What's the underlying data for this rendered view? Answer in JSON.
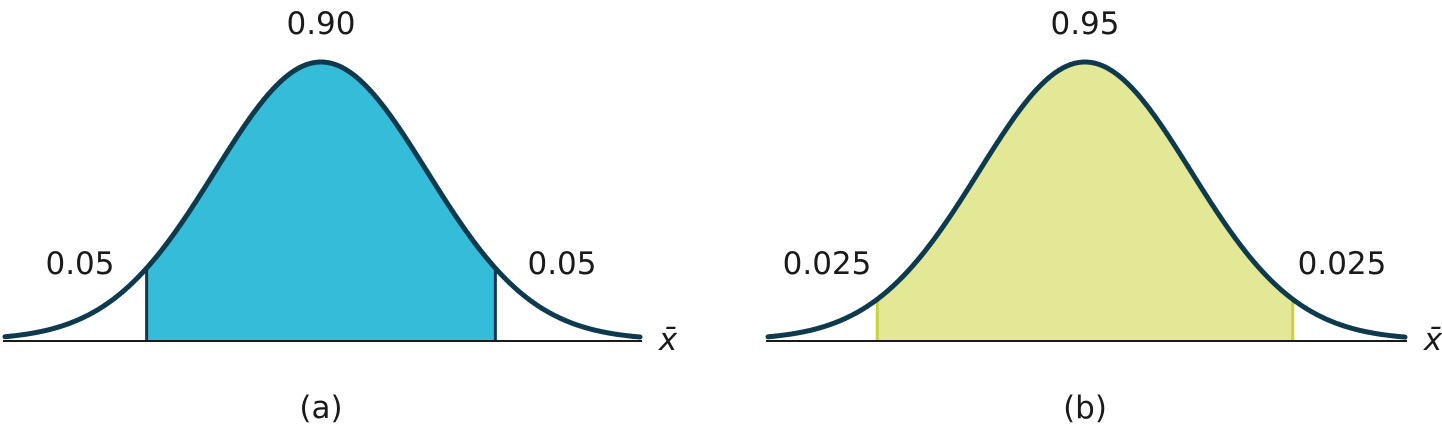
{
  "colors": {
    "curve": "#0d3a4c",
    "axis": "#1a1a1a",
    "panel_a_fill": "#35bcd8",
    "panel_b_fill": "#e3e896",
    "panel_b_edge": "#c8d23a"
  },
  "panels": [
    {
      "caption": "(a)",
      "center_area": "0.90",
      "left_tail": "0.05",
      "right_tail": "0.05",
      "axis_label": "x̄",
      "center_area_value": 0.9,
      "tail_area_value": 0.05
    },
    {
      "caption": "(b)",
      "center_area": "0.95",
      "left_tail": "0.025",
      "right_tail": "0.025",
      "axis_label": "x̄",
      "center_area_value": 0.95,
      "tail_area_value": 0.025
    }
  ]
}
